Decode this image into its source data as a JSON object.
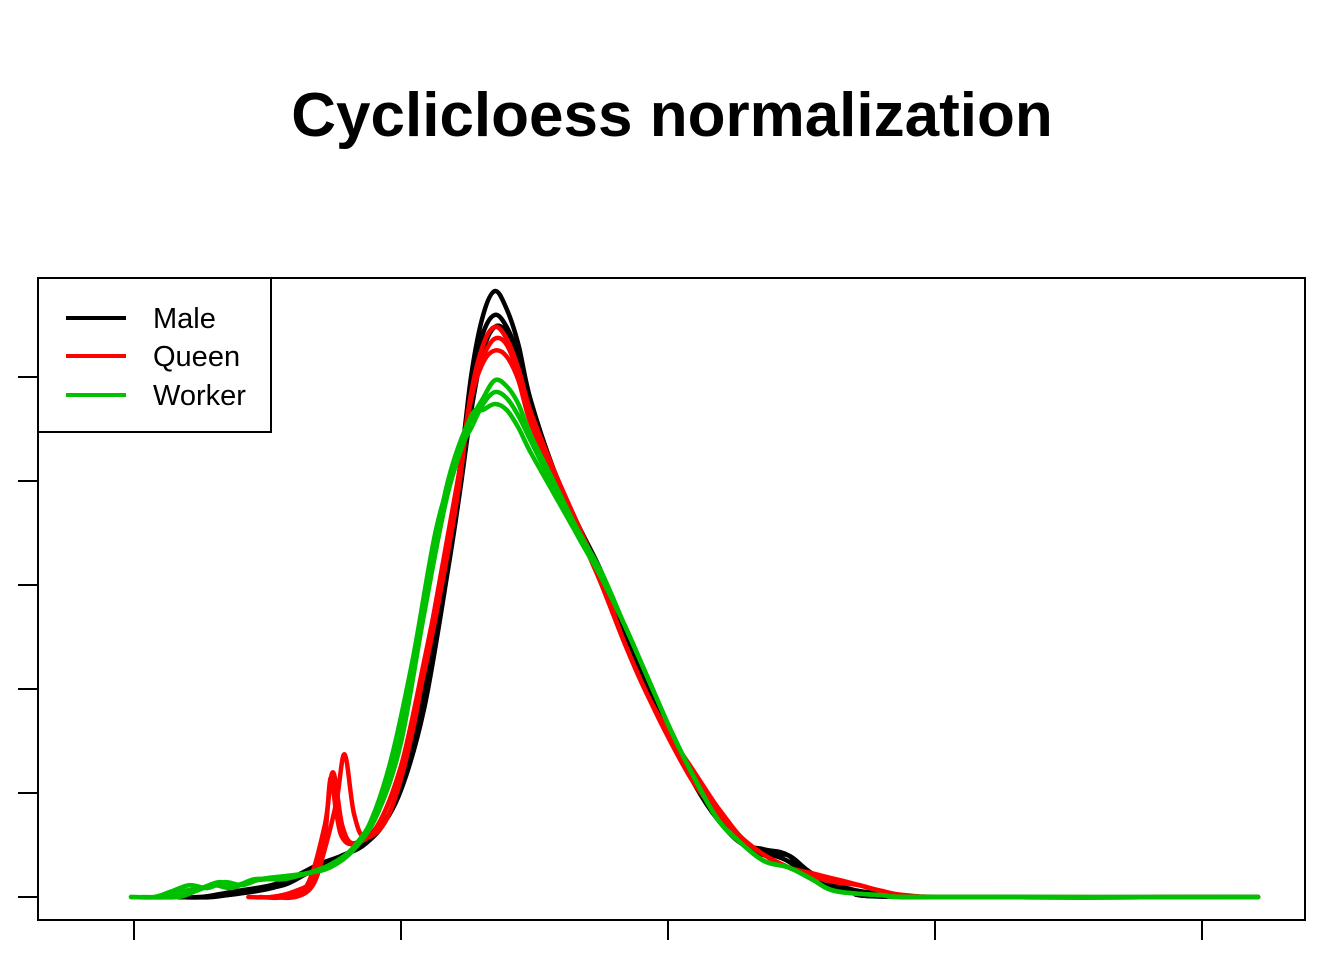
{
  "chart_data": {
    "type": "line",
    "title": "Cyclicloess normalization",
    "xlabel": "",
    "ylabel": "",
    "xlim": [
      0,
      100
    ],
    "ylim": [
      0,
      100
    ],
    "x_ticks": 5,
    "y_ticks": 6,
    "grid": false,
    "legend": {
      "position": "top-left",
      "entries": [
        {
          "label": "Male",
          "color": "#000000"
        },
        {
          "label": "Queen",
          "color": "#ff0000"
        },
        {
          "label": "Worker",
          "color": "#00c000"
        }
      ]
    },
    "series": [
      {
        "group": "Male",
        "color": "#000000",
        "points": [
          [
            8,
            0
          ],
          [
            10,
            0
          ],
          [
            13,
            0.5
          ],
          [
            16,
            1.5
          ],
          [
            18,
            3
          ],
          [
            20,
            5
          ],
          [
            22,
            7
          ],
          [
            24,
            9
          ],
          [
            26,
            14
          ],
          [
            28,
            25
          ],
          [
            30,
            45
          ],
          [
            32,
            72
          ],
          [
            33,
            88
          ],
          [
            34,
            98
          ],
          [
            35,
            102
          ],
          [
            36,
            99
          ],
          [
            37,
            93
          ],
          [
            38,
            84
          ],
          [
            40,
            72
          ],
          [
            42,
            63
          ],
          [
            44,
            55
          ],
          [
            46,
            45
          ],
          [
            48,
            35
          ],
          [
            50,
            27
          ],
          [
            52,
            19
          ],
          [
            54,
            13
          ],
          [
            56,
            9
          ],
          [
            58,
            7
          ],
          [
            60,
            7
          ],
          [
            62,
            4
          ],
          [
            65,
            1.5
          ],
          [
            68,
            0.5
          ],
          [
            72,
            0
          ],
          [
            100,
            0
          ]
        ]
      },
      {
        "group": "Male",
        "color": "#000000",
        "points": [
          [
            8,
            0
          ],
          [
            10,
            0
          ],
          [
            13,
            1
          ],
          [
            16,
            2
          ],
          [
            18,
            3.5
          ],
          [
            20,
            5.5
          ],
          [
            22,
            7
          ],
          [
            24,
            9
          ],
          [
            26,
            14
          ],
          [
            28,
            26
          ],
          [
            30,
            46
          ],
          [
            32,
            72
          ],
          [
            33,
            87
          ],
          [
            34,
            95
          ],
          [
            35,
            98
          ],
          [
            36,
            96
          ],
          [
            37,
            91
          ],
          [
            38,
            83
          ],
          [
            40,
            72
          ],
          [
            42,
            63
          ],
          [
            44,
            55
          ],
          [
            46,
            45
          ],
          [
            48,
            35
          ],
          [
            50,
            27
          ],
          [
            52,
            19
          ],
          [
            54,
            13
          ],
          [
            56,
            9
          ],
          [
            58,
            7.5
          ],
          [
            60,
            6
          ],
          [
            62,
            3
          ],
          [
            65,
            1
          ],
          [
            70,
            0
          ],
          [
            100,
            0
          ]
        ]
      },
      {
        "group": "Male",
        "color": "#000000",
        "points": [
          [
            8,
            0
          ],
          [
            11,
            0
          ],
          [
            14,
            1
          ],
          [
            17,
            2
          ],
          [
            19,
            4
          ],
          [
            21,
            6
          ],
          [
            23,
            8
          ],
          [
            25,
            11
          ],
          [
            27,
            18
          ],
          [
            29,
            32
          ],
          [
            31,
            55
          ],
          [
            32,
            68
          ],
          [
            33,
            82
          ],
          [
            34,
            92
          ],
          [
            35,
            96
          ],
          [
            36,
            95
          ],
          [
            37,
            90
          ],
          [
            38,
            82
          ],
          [
            40,
            71
          ],
          [
            42,
            62
          ],
          [
            44,
            54
          ],
          [
            46,
            44
          ],
          [
            48,
            35
          ],
          [
            50,
            27
          ],
          [
            52,
            19
          ],
          [
            54,
            13
          ],
          [
            56,
            9
          ],
          [
            58,
            8
          ],
          [
            60,
            7
          ],
          [
            62,
            3
          ],
          [
            65,
            1
          ],
          [
            70,
            0
          ],
          [
            100,
            0
          ]
        ]
      },
      {
        "group": "Queen",
        "color": "#ff0000",
        "points": [
          [
            14,
            0
          ],
          [
            16,
            0
          ],
          [
            18,
            1
          ],
          [
            19.5,
            3
          ],
          [
            20.5,
            10
          ],
          [
            21,
            20
          ],
          [
            21.5,
            14
          ],
          [
            22,
            10
          ],
          [
            23,
            9
          ],
          [
            25,
            12
          ],
          [
            27,
            22
          ],
          [
            29,
            38
          ],
          [
            31,
            58
          ],
          [
            32,
            70
          ],
          [
            33,
            85
          ],
          [
            34,
            93
          ],
          [
            35,
            96
          ],
          [
            36,
            94
          ],
          [
            37,
            89
          ],
          [
            38,
            82
          ],
          [
            40,
            72
          ],
          [
            42,
            63
          ],
          [
            44,
            54
          ],
          [
            46,
            43
          ],
          [
            48,
            34
          ],
          [
            50,
            27
          ],
          [
            52,
            21
          ],
          [
            54,
            15
          ],
          [
            56,
            10
          ],
          [
            58,
            7
          ],
          [
            60,
            5
          ],
          [
            62,
            3.5
          ],
          [
            64,
            3
          ],
          [
            66,
            2
          ],
          [
            68,
            1
          ],
          [
            70,
            0.3
          ],
          [
            75,
            0
          ],
          [
            100,
            0
          ]
        ]
      },
      {
        "group": "Queen",
        "color": "#ff0000",
        "points": [
          [
            15,
            0
          ],
          [
            17,
            0
          ],
          [
            19,
            2
          ],
          [
            20.5,
            12
          ],
          [
            21.2,
            21
          ],
          [
            22,
            12
          ],
          [
            23,
            9
          ],
          [
            25,
            12
          ],
          [
            27,
            22
          ],
          [
            29,
            40
          ],
          [
            31,
            60
          ],
          [
            32,
            72
          ],
          [
            33,
            85
          ],
          [
            34,
            91
          ],
          [
            35,
            94
          ],
          [
            36,
            93
          ],
          [
            37,
            88
          ],
          [
            38,
            81
          ],
          [
            40,
            71
          ],
          [
            42,
            62
          ],
          [
            44,
            53
          ],
          [
            46,
            43
          ],
          [
            48,
            34
          ],
          [
            50,
            27
          ],
          [
            52,
            20
          ],
          [
            54,
            15
          ],
          [
            56,
            10
          ],
          [
            58,
            7
          ],
          [
            60,
            5
          ],
          [
            62,
            4
          ],
          [
            64,
            3
          ],
          [
            66,
            2
          ],
          [
            68,
            1
          ],
          [
            72,
            0
          ],
          [
            100,
            0
          ]
        ]
      },
      {
        "group": "Queen",
        "color": "#ff0000",
        "points": [
          [
            16,
            0
          ],
          [
            18,
            0
          ],
          [
            19.5,
            2
          ],
          [
            20.5,
            8
          ],
          [
            21.5,
            16
          ],
          [
            22.2,
            24
          ],
          [
            23,
            14
          ],
          [
            24,
            10
          ],
          [
            26,
            14
          ],
          [
            28,
            28
          ],
          [
            30,
            50
          ],
          [
            32,
            72
          ],
          [
            33,
            84
          ],
          [
            34,
            90
          ],
          [
            35,
            92
          ],
          [
            36,
            91
          ],
          [
            37,
            87
          ],
          [
            38,
            80
          ],
          [
            40,
            71
          ],
          [
            42,
            62
          ],
          [
            44,
            53
          ],
          [
            46,
            43
          ],
          [
            48,
            34
          ],
          [
            50,
            26
          ],
          [
            52,
            19
          ],
          [
            54,
            14
          ],
          [
            56,
            10
          ],
          [
            58,
            7
          ],
          [
            60,
            5
          ],
          [
            62,
            3.5
          ],
          [
            64,
            2.5
          ],
          [
            66,
            2
          ],
          [
            68,
            1
          ],
          [
            72,
            0
          ],
          [
            100,
            0
          ]
        ]
      },
      {
        "group": "Worker",
        "color": "#00c000",
        "points": [
          [
            4,
            0
          ],
          [
            6,
            0
          ],
          [
            7.5,
            1
          ],
          [
            9,
            2
          ],
          [
            10.5,
            1.5
          ],
          [
            12,
            2.5
          ],
          [
            13.5,
            2
          ],
          [
            15,
            3
          ],
          [
            17,
            3.5
          ],
          [
            19,
            4
          ],
          [
            21,
            5
          ],
          [
            23,
            8
          ],
          [
            25,
            14
          ],
          [
            27,
            26
          ],
          [
            29,
            48
          ],
          [
            31,
            68
          ],
          [
            33,
            80
          ],
          [
            34,
            84
          ],
          [
            35,
            87
          ],
          [
            36,
            86
          ],
          [
            37,
            83
          ],
          [
            38,
            78
          ],
          [
            40,
            70
          ],
          [
            42,
            62
          ],
          [
            44,
            55
          ],
          [
            46,
            46
          ],
          [
            48,
            37
          ],
          [
            50,
            28
          ],
          [
            52,
            20
          ],
          [
            54,
            13
          ],
          [
            56,
            9
          ],
          [
            58,
            6
          ],
          [
            60,
            5
          ],
          [
            62,
            3
          ],
          [
            64,
            1
          ],
          [
            68,
            0.3
          ],
          [
            72,
            0
          ],
          [
            100,
            0
          ]
        ]
      },
      {
        "group": "Worker",
        "color": "#00c000",
        "points": [
          [
            4,
            0
          ],
          [
            7,
            0
          ],
          [
            8.5,
            1
          ],
          [
            10,
            1.5
          ],
          [
            11.5,
            2.5
          ],
          [
            13,
            2
          ],
          [
            14.5,
            3
          ],
          [
            16,
            3
          ],
          [
            18,
            3.5
          ],
          [
            20,
            4.5
          ],
          [
            22,
            6.5
          ],
          [
            24,
            11
          ],
          [
            26,
            22
          ],
          [
            28,
            40
          ],
          [
            30,
            62
          ],
          [
            32,
            75
          ],
          [
            33,
            79
          ],
          [
            34,
            83
          ],
          [
            35,
            85
          ],
          [
            36,
            84
          ],
          [
            37,
            81
          ],
          [
            38,
            77
          ],
          [
            40,
            69
          ],
          [
            42,
            61
          ],
          [
            44,
            54
          ],
          [
            46,
            46
          ],
          [
            48,
            37
          ],
          [
            50,
            28
          ],
          [
            52,
            20
          ],
          [
            54,
            13
          ],
          [
            56,
            9
          ],
          [
            58,
            6
          ],
          [
            60,
            5
          ],
          [
            62,
            3
          ],
          [
            64,
            1
          ],
          [
            68,
            0.3
          ],
          [
            72,
            0
          ],
          [
            100,
            0
          ]
        ]
      },
      {
        "group": "Worker",
        "color": "#00c000",
        "points": [
          [
            5,
            0
          ],
          [
            8,
            0
          ],
          [
            9.5,
            1
          ],
          [
            11,
            2
          ],
          [
            12.5,
            1.5
          ],
          [
            14,
            2.5
          ],
          [
            15.5,
            3
          ],
          [
            17,
            3
          ],
          [
            19,
            4
          ],
          [
            21,
            5.5
          ],
          [
            23,
            8.5
          ],
          [
            25,
            15
          ],
          [
            27,
            28
          ],
          [
            29,
            50
          ],
          [
            31,
            70
          ],
          [
            33,
            81
          ],
          [
            34,
            82
          ],
          [
            35,
            83
          ],
          [
            36,
            82
          ],
          [
            37,
            79
          ],
          [
            38,
            75
          ],
          [
            40,
            68
          ],
          [
            42,
            61
          ],
          [
            44,
            54
          ],
          [
            46,
            46
          ],
          [
            48,
            37
          ],
          [
            50,
            28
          ],
          [
            52,
            20
          ],
          [
            54,
            13
          ],
          [
            56,
            9
          ],
          [
            58,
            6
          ],
          [
            60,
            5
          ],
          [
            62,
            3
          ],
          [
            64,
            1
          ],
          [
            68,
            0.3
          ],
          [
            72,
            0
          ],
          [
            100,
            0
          ]
        ]
      }
    ]
  }
}
